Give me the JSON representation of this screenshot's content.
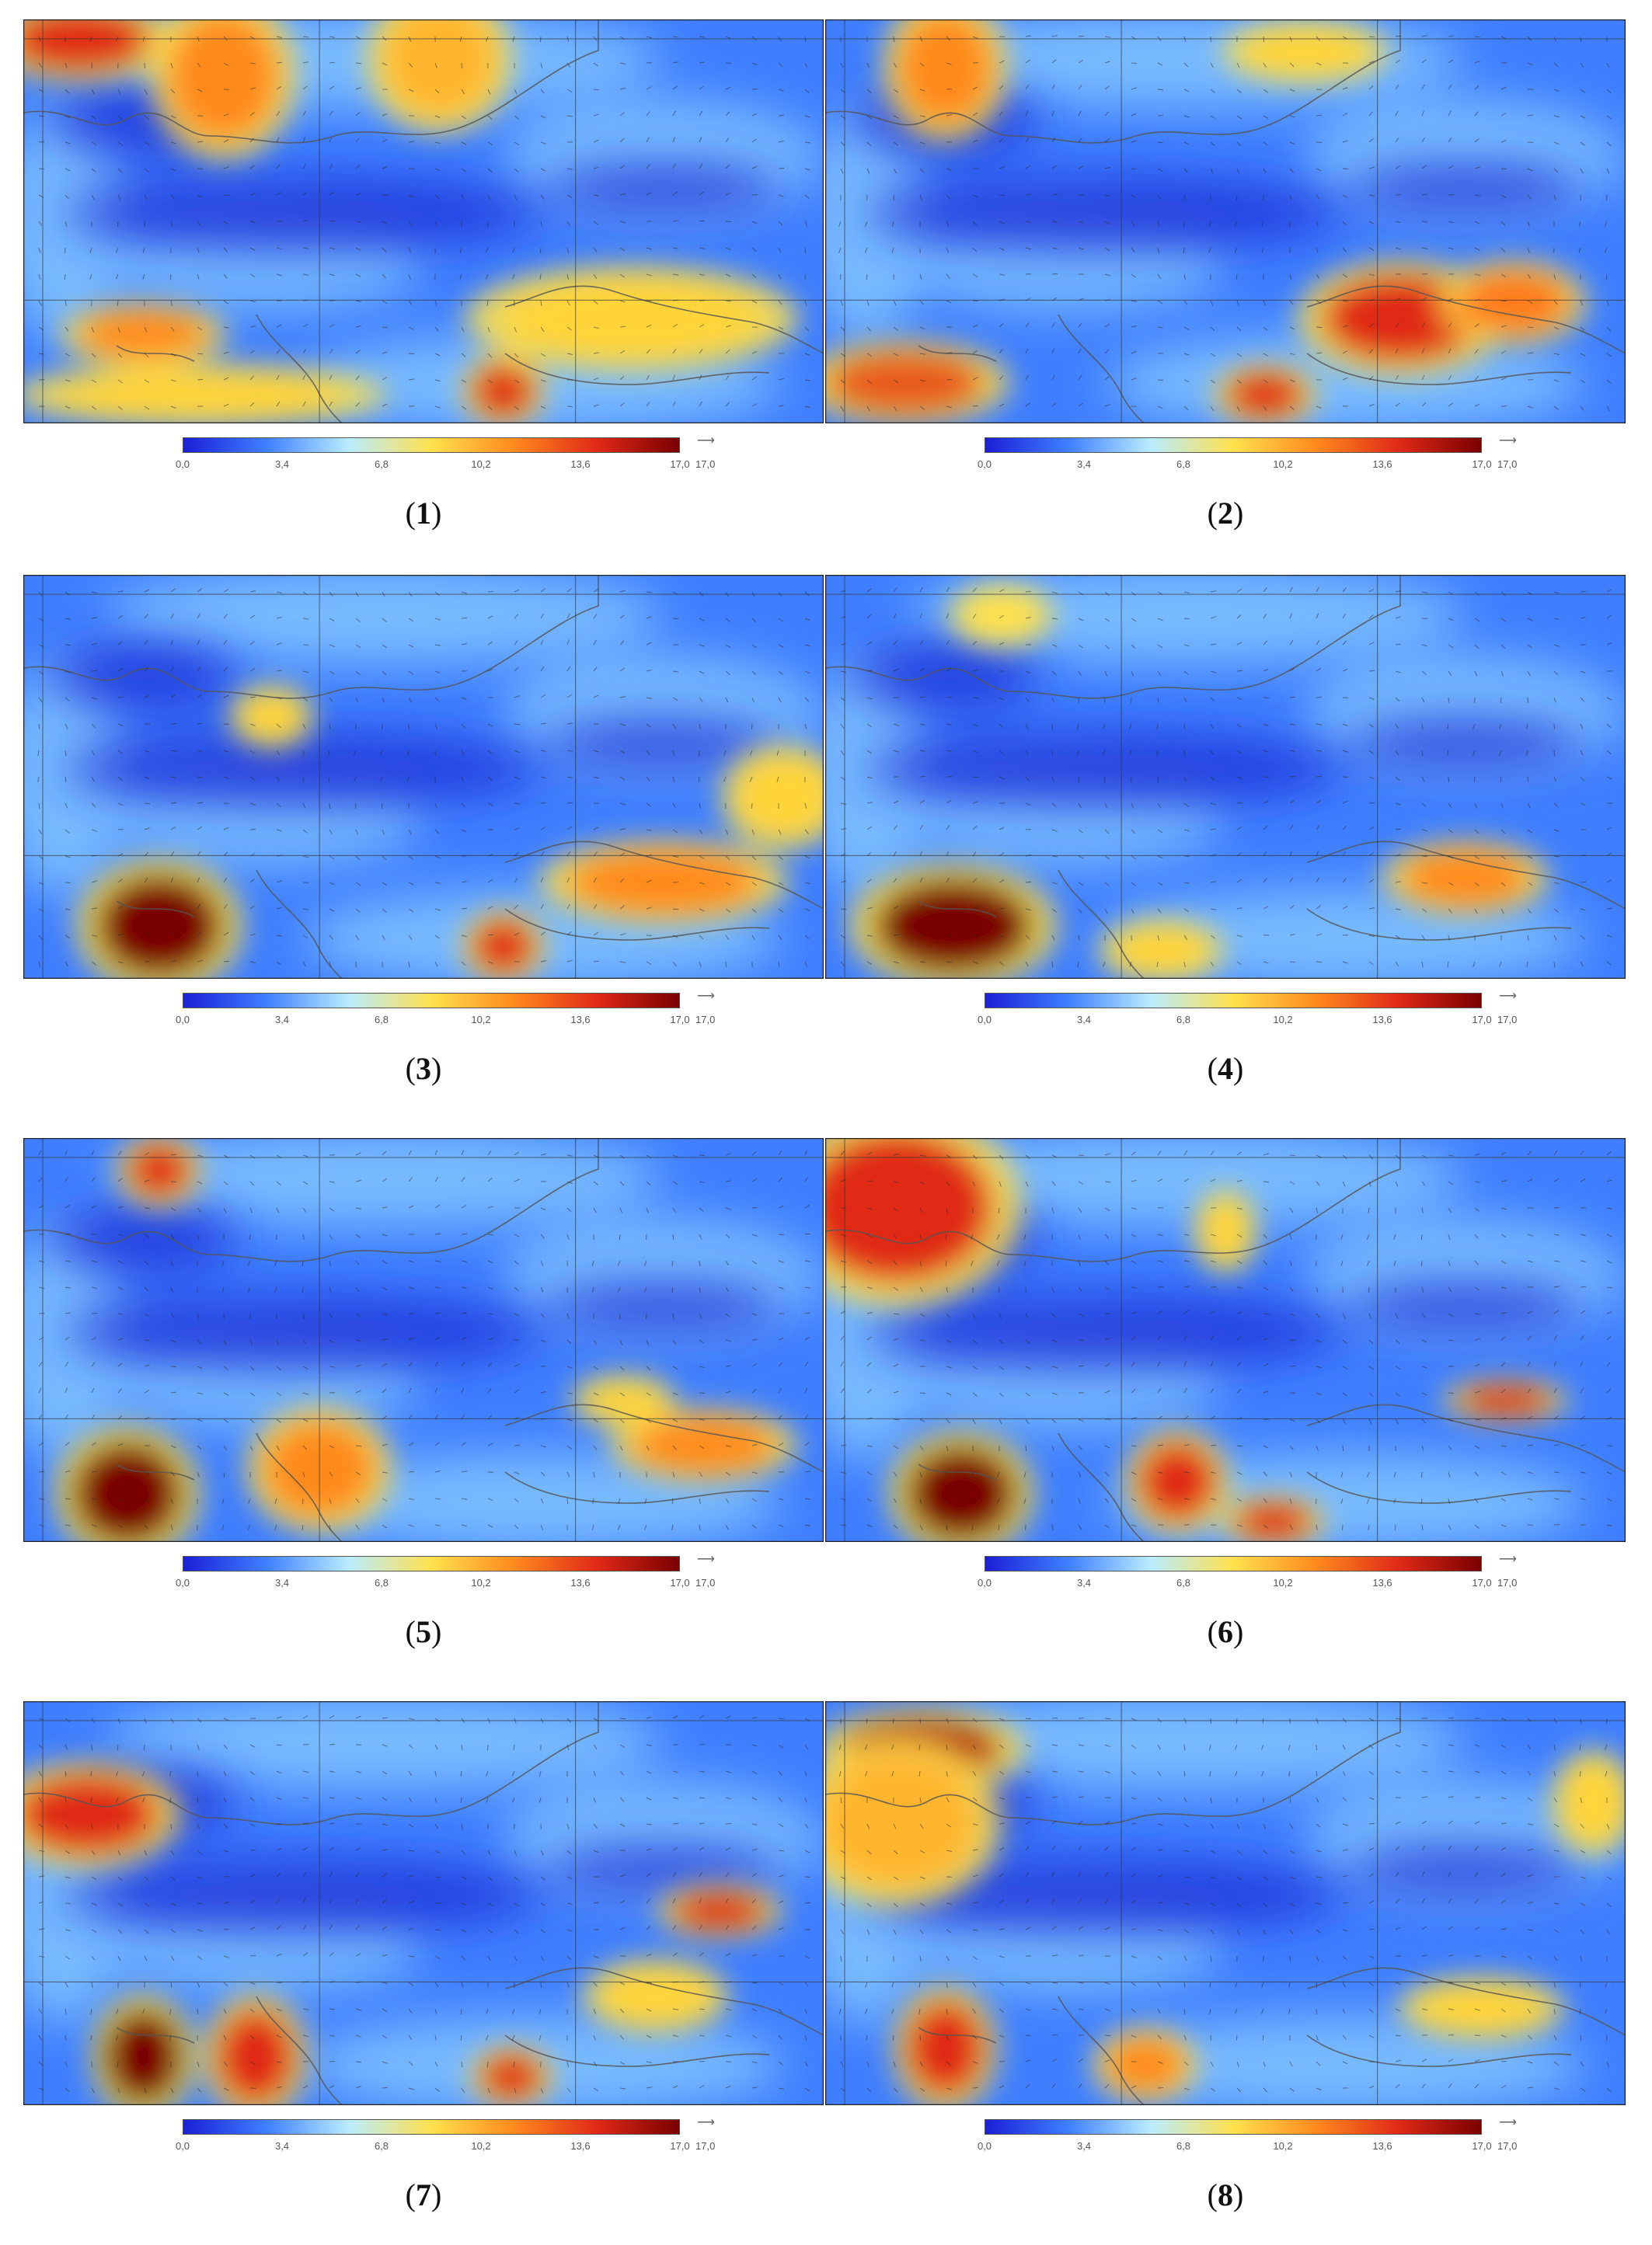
{
  "colorbar": {
    "ticks": [
      "0,0",
      "3,4",
      "6,8",
      "10,2",
      "13,6",
      "17,0"
    ],
    "vector_key": "17,0",
    "colors": [
      "#1a1fd6",
      "#3f7fff",
      "#b9ecff",
      "#ffe14d",
      "#ff8a1e",
      "#e02a18",
      "#7a0000"
    ]
  },
  "panels": [
    {
      "label": "1"
    },
    {
      "label": "2"
    },
    {
      "label": "3"
    },
    {
      "label": "4"
    },
    {
      "label": "5"
    },
    {
      "label": "6"
    },
    {
      "label": "7"
    },
    {
      "label": "8"
    }
  ]
}
